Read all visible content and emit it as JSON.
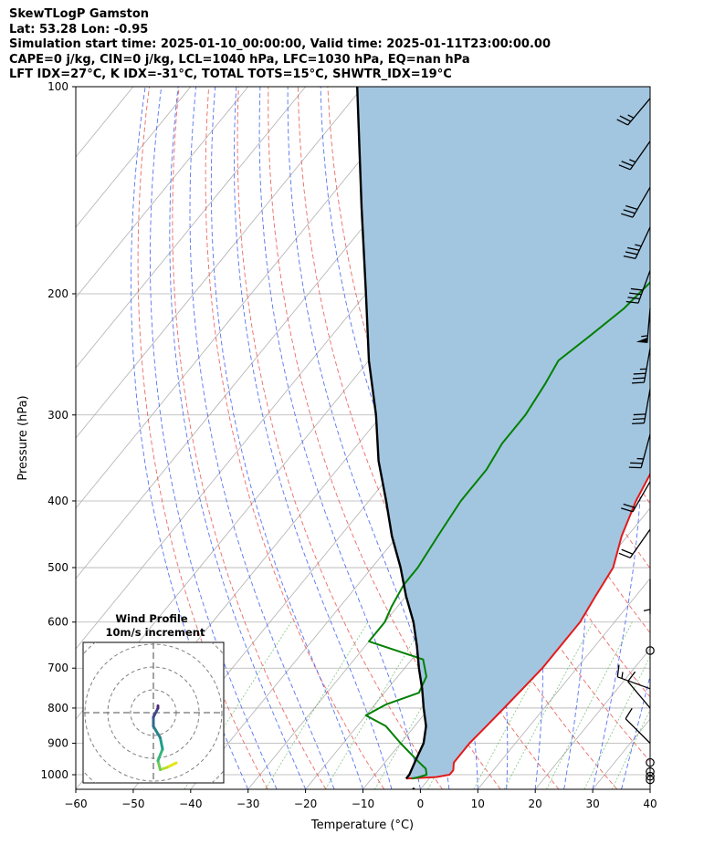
{
  "header": {
    "line1": "SkewTLogP Gamston",
    "line2": "Lat: 53.28   Lon: -0.95",
    "line3": "Simulation start time: 2025-01-10_00:00:00, Valid time: 2025-01-11T23:00:00.00",
    "line4": "CAPE=0 j/kg, CIN=0 j/kg, LCL=1040 hPa, LFC=1030 hPa, EQ=nan hPa",
    "line5": "LFT IDX=27°C, K IDX=-31°C, TOTAL TOTS=15°C, SHWTR_IDX=19°C"
  },
  "chart_data": {
    "type": "line",
    "xlabel": "Temperature (°C)",
    "ylabel": "Pressure (hPa)",
    "xlim": [
      -60,
      40
    ],
    "ylim": [
      1050,
      100
    ],
    "y_scale": "log",
    "grid": true,
    "xticks": [
      "−60",
      "−50",
      "−40",
      "−30",
      "−20",
      "−10",
      "0",
      "10",
      "20",
      "30",
      "40"
    ],
    "yticks": [
      {
        "p": 100,
        "label": "100"
      },
      {
        "p": 200,
        "label": "200"
      },
      {
        "p": 300,
        "label": "300"
      },
      {
        "p": 400,
        "label": "400"
      },
      {
        "p": 500,
        "label": "500"
      },
      {
        "p": 600,
        "label": "600"
      },
      {
        "p": 700,
        "label": "700"
      },
      {
        "p": 800,
        "label": "800"
      },
      {
        "p": 900,
        "label": "900"
      },
      {
        "p": 1000,
        "label": "1000"
      }
    ],
    "colors": {
      "temperature": "#e31a1c",
      "dewpoint": "#008000",
      "parcel": "#000000",
      "cape_fill": "#a3c6e0"
    },
    "series": [
      {
        "key": "temperature",
        "points": [
          [
            1013,
            -4
          ],
          [
            1008,
            1
          ],
          [
            1000,
            3
          ],
          [
            985,
            3
          ],
          [
            960,
            2
          ],
          [
            900,
            2
          ],
          [
            850,
            2.5
          ],
          [
            800,
            3
          ],
          [
            750,
            3.5
          ],
          [
            700,
            4
          ],
          [
            650,
            4
          ],
          [
            600,
            4
          ],
          [
            550,
            3
          ],
          [
            500,
            2
          ],
          [
            450,
            -1
          ],
          [
            400,
            -3.5
          ],
          [
            350,
            -5.5
          ],
          [
            300,
            -8
          ],
          [
            260,
            -10
          ],
          [
            230,
            -12
          ],
          [
            210,
            -12
          ],
          [
            200,
            -12
          ],
          [
            185,
            -10
          ],
          [
            160,
            -7
          ],
          [
            140,
            -4
          ],
          [
            125,
            -1
          ],
          [
            115,
            2
          ],
          [
            108,
            4
          ],
          [
            100,
            4
          ]
        ]
      },
      {
        "key": "dewpoint",
        "points": [
          [
            1013,
            -3
          ],
          [
            1008,
            -2
          ],
          [
            1000,
            -1
          ],
          [
            980,
            -2
          ],
          [
            960,
            -4
          ],
          [
            900,
            -10
          ],
          [
            850,
            -15
          ],
          [
            820,
            -20
          ],
          [
            790,
            -18
          ],
          [
            760,
            -14
          ],
          [
            720,
            -15
          ],
          [
            680,
            -18
          ],
          [
            640,
            -30
          ],
          [
            600,
            -30
          ],
          [
            570,
            -31
          ],
          [
            530,
            -32
          ],
          [
            500,
            -32
          ],
          [
            450,
            -33
          ],
          [
            400,
            -34
          ],
          [
            360,
            -34
          ],
          [
            330,
            -35
          ],
          [
            300,
            -35
          ],
          [
            270,
            -36
          ],
          [
            250,
            -37
          ],
          [
            230,
            -35
          ],
          [
            210,
            -33
          ],
          [
            190,
            -32
          ],
          [
            175,
            -33
          ],
          [
            160,
            -30
          ],
          [
            140,
            -26
          ],
          [
            120,
            -22
          ],
          [
            100,
            -17
          ]
        ]
      },
      {
        "key": "parcel",
        "points": [
          [
            1013,
            -4
          ],
          [
            1000,
            -4
          ],
          [
            950,
            -5
          ],
          [
            900,
            -6
          ],
          [
            850,
            -8
          ],
          [
            800,
            -11
          ],
          [
            750,
            -14
          ],
          [
            700,
            -17.5
          ],
          [
            650,
            -21
          ],
          [
            600,
            -25
          ],
          [
            550,
            -30
          ],
          [
            500,
            -35
          ],
          [
            450,
            -41
          ],
          [
            400,
            -47
          ],
          [
            350,
            -54
          ],
          [
            300,
            -61
          ],
          [
            250,
            -70
          ],
          [
            200,
            -80
          ],
          [
            150,
            -93
          ],
          [
            100,
            -111
          ]
        ]
      }
    ],
    "wind_barbs": [
      {
        "p": 1017,
        "speed_kt": 0
      },
      {
        "p": 1005,
        "speed_kt": 0
      },
      {
        "p": 990,
        "speed_kt": 0
      },
      {
        "p": 960,
        "speed_kt": 0
      },
      {
        "p": 900,
        "speed_kt": 10,
        "dir": 315
      },
      {
        "p": 800,
        "speed_kt": 10,
        "dir": 320
      },
      {
        "p": 750,
        "speed_kt": 15,
        "dir": 290
      },
      {
        "p": 660,
        "speed_kt": 0
      },
      {
        "p": 520,
        "speed_kt": 5,
        "dir": 180
      },
      {
        "p": 440,
        "speed_kt": 20,
        "dir": 215
      },
      {
        "p": 375,
        "speed_kt": 20,
        "dir": 210
      },
      {
        "p": 320,
        "speed_kt": 25,
        "dir": 195
      },
      {
        "p": 275,
        "speed_kt": 30,
        "dir": 190
      },
      {
        "p": 240,
        "speed_kt": 35,
        "dir": 190
      },
      {
        "p": 210,
        "speed_kt": 55,
        "dir": 185
      },
      {
        "p": 185,
        "speed_kt": 40,
        "dir": 200
      },
      {
        "p": 160,
        "speed_kt": 35,
        "dir": 205
      },
      {
        "p": 140,
        "speed_kt": 30,
        "dir": 210
      },
      {
        "p": 120,
        "speed_kt": 25,
        "dir": 215
      },
      {
        "p": 104,
        "speed_kt": 25,
        "dir": 220
      }
    ],
    "hodograph": {
      "title": "Wind Profile",
      "subtitle": "10m/s increment",
      "ring_step_ms": 10,
      "rings": 3,
      "points": [
        {
          "u": 10,
          "v": -22,
          "c": "#e5e419"
        },
        {
          "u": 6,
          "v": -24,
          "c": "#b5de2b"
        },
        {
          "u": 3,
          "v": -25,
          "c": "#6ece58"
        },
        {
          "u": 2,
          "v": -21,
          "c": "#35b779"
        },
        {
          "u": 4,
          "v": -16,
          "c": "#1f9e89"
        },
        {
          "u": 3,
          "v": -11,
          "c": "#26828e"
        },
        {
          "u": 0,
          "v": -6,
          "c": "#31688e"
        },
        {
          "u": 0,
          "v": -2,
          "c": "#3e4989"
        },
        {
          "u": 2,
          "v": 2,
          "c": "#482878"
        },
        {
          "u": 2,
          "v": 3,
          "c": "#440154"
        }
      ]
    }
  }
}
